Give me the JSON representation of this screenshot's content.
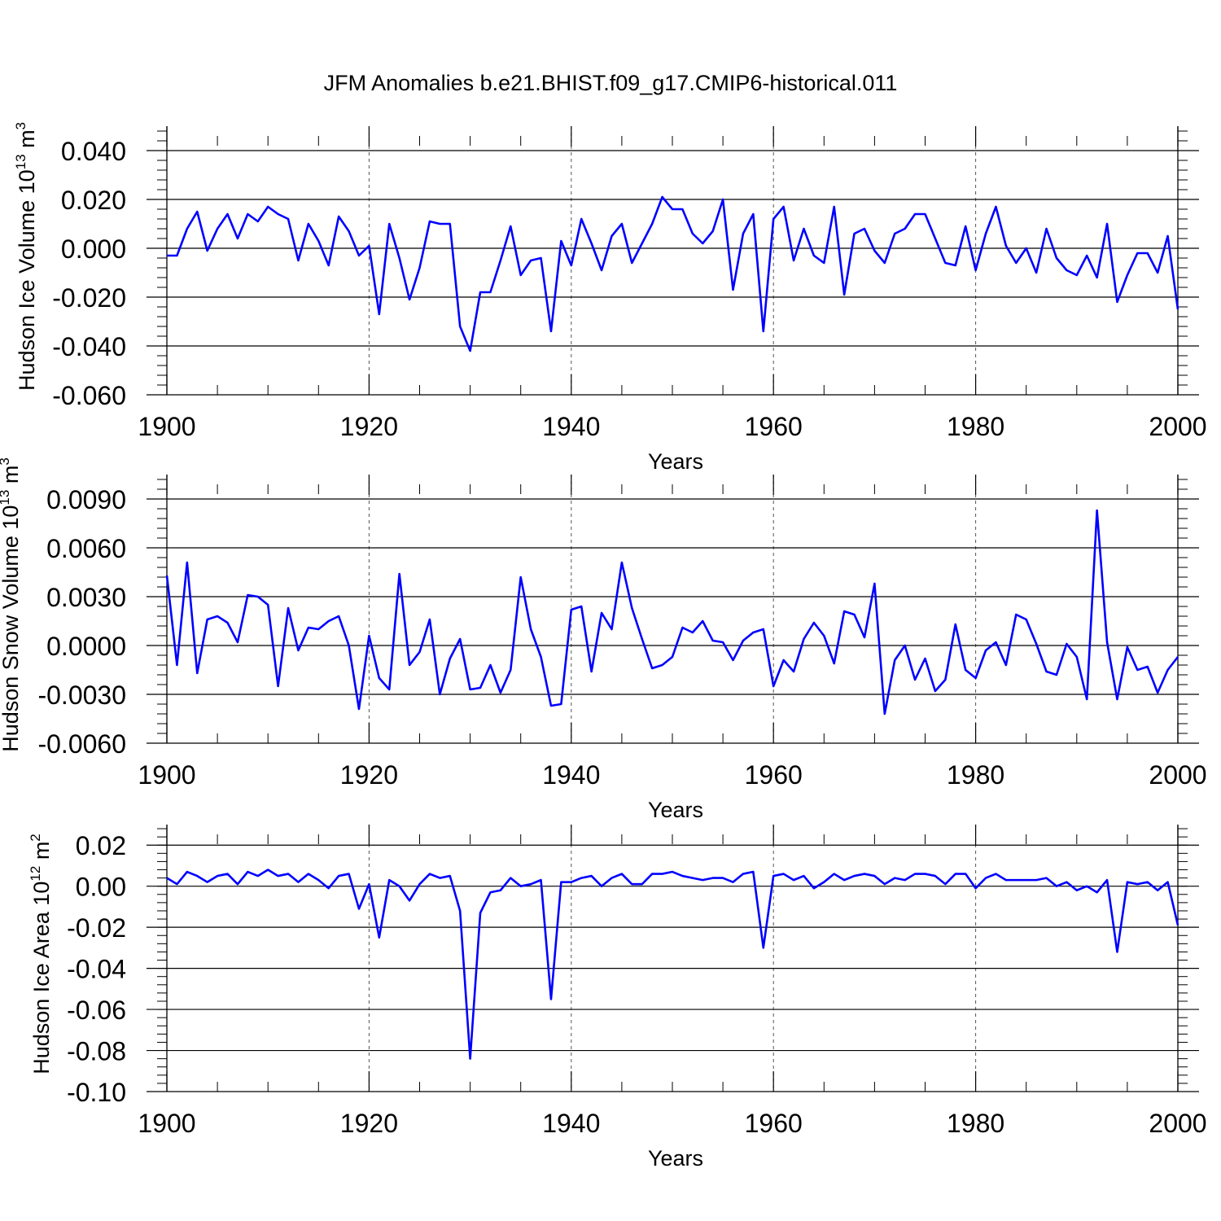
{
  "title": "JFM Anomalies b.e21.BHIST.f09_g17.CMIP6-historical.011",
  "line_color": "#0000ff",
  "chart_data": [
    {
      "type": "line",
      "name": "ice-volume",
      "ylabel": "Hudson Ice Volume 10",
      "ylabel_sup": "13",
      "ylabel_unit": " m",
      "ylabel_unit_sup": "3",
      "xlabel": "Years",
      "xlim": [
        1900,
        2000
      ],
      "ylim": [
        -0.06,
        0.05
      ],
      "yticks": [
        0.04,
        0.02,
        0.0,
        -0.02,
        -0.04,
        -0.06
      ],
      "ytick_labels": [
        "0.040",
        "0.020",
        "0.000",
        "-0.020",
        "-0.040",
        "-0.060"
      ],
      "xticks": [
        1900,
        1920,
        1940,
        1960,
        1980,
        2000
      ],
      "xtick_labels": [
        "1900",
        "1920",
        "1940",
        "1960",
        "1980",
        "2000"
      ],
      "x_start": 1900,
      "values": [
        -0.003,
        -0.003,
        0.008,
        0.015,
        -0.001,
        0.008,
        0.014,
        0.004,
        0.014,
        0.011,
        0.017,
        0.014,
        0.012,
        -0.005,
        0.01,
        0.003,
        -0.007,
        0.013,
        0.007,
        -0.003,
        0.001,
        -0.027,
        0.01,
        -0.004,
        -0.021,
        -0.008,
        0.011,
        0.01,
        0.01,
        -0.032,
        -0.042,
        -0.018,
        -0.018,
        -0.005,
        0.009,
        -0.011,
        -0.005,
        -0.004,
        -0.034,
        0.003,
        -0.007,
        0.012,
        0.002,
        -0.009,
        0.005,
        0.01,
        -0.006,
        0.002,
        0.01,
        0.021,
        0.016,
        0.016,
        0.006,
        0.002,
        0.007,
        0.02,
        -0.017,
        0.006,
        0.014,
        -0.034,
        0.012,
        0.017,
        -0.005,
        0.008,
        -0.003,
        -0.006,
        0.017,
        -0.019,
        0.006,
        0.008,
        -0.001,
        -0.006,
        0.006,
        0.008,
        0.014,
        0.014,
        0.004,
        -0.006,
        -0.007,
        0.009,
        -0.009,
        0.006,
        0.017,
        0.001,
        -0.006,
        0.0,
        -0.01,
        0.008,
        -0.004,
        -0.009,
        -0.011,
        -0.003,
        -0.012,
        0.01,
        -0.022,
        -0.011,
        -0.002,
        -0.002,
        -0.01,
        0.005,
        -0.025
      ]
    },
    {
      "type": "line",
      "name": "snow-volume",
      "ylabel": "Hudson Snow Volume 10",
      "ylabel_sup": "13",
      "ylabel_unit": " m",
      "ylabel_unit_sup": "3",
      "xlabel": "Years",
      "xlim": [
        1900,
        2000
      ],
      "ylim": [
        -0.006,
        0.0105
      ],
      "yticks": [
        0.009,
        0.006,
        0.003,
        0.0,
        -0.003,
        -0.006
      ],
      "ytick_labels": [
        "0.0090",
        "0.0060",
        "0.0030",
        "0.0000",
        "-0.0030",
        "-0.0060"
      ],
      "xticks": [
        1900,
        1920,
        1940,
        1960,
        1980,
        2000
      ],
      "xtick_labels": [
        "1900",
        "1920",
        "1940",
        "1960",
        "1980",
        "2000"
      ],
      "x_start": 1900,
      "values": [
        0.0043,
        -0.0012,
        0.0051,
        -0.0017,
        0.0016,
        0.0018,
        0.0014,
        0.0002,
        0.0031,
        0.003,
        0.0025,
        -0.0025,
        0.0023,
        -0.0003,
        0.0011,
        0.001,
        0.0015,
        0.0018,
        0.0,
        -0.0039,
        0.0006,
        -0.002,
        -0.0027,
        0.0044,
        -0.0012,
        -0.0004,
        0.0016,
        -0.003,
        -0.0008,
        0.0004,
        -0.0027,
        -0.0026,
        -0.0012,
        -0.0029,
        -0.0015,
        0.0042,
        0.001,
        -0.0007,
        -0.0037,
        -0.0036,
        0.0022,
        0.0024,
        -0.0016,
        0.002,
        0.001,
        0.0051,
        0.0023,
        0.0004,
        -0.0014,
        -0.0012,
        -0.0007,
        0.0011,
        0.0008,
        0.0015,
        0.0003,
        0.0002,
        -0.0009,
        0.0003,
        0.0008,
        0.001,
        -0.0025,
        -0.0009,
        -0.0016,
        0.0004,
        0.0014,
        0.0006,
        -0.0011,
        0.0021,
        0.0019,
        0.0005,
        0.0038,
        -0.0042,
        -0.0009,
        0.0,
        -0.0021,
        -0.0008,
        -0.0028,
        -0.0021,
        0.0013,
        -0.0015,
        -0.002,
        -0.0003,
        0.0002,
        -0.0012,
        0.0019,
        0.0016,
        0.0001,
        -0.0016,
        -0.0018,
        0.0001,
        -0.0007,
        -0.0033,
        0.0083,
        0.0002,
        -0.0033,
        -0.0001,
        -0.0015,
        -0.0013,
        -0.0029,
        -0.0015,
        -0.0007
      ]
    },
    {
      "type": "line",
      "name": "ice-area",
      "ylabel": "Hudson Ice Area 10",
      "ylabel_sup": "12",
      "ylabel_unit": " m",
      "ylabel_unit_sup": "2",
      "xlabel": "Years",
      "xlim": [
        1900,
        2000
      ],
      "ylim": [
        -0.1,
        0.03
      ],
      "yticks": [
        0.02,
        0.0,
        -0.02,
        -0.04,
        -0.06,
        -0.08,
        -0.1
      ],
      "ytick_labels": [
        "0.02",
        "0.00",
        "-0.02",
        "-0.04",
        "-0.06",
        "-0.08",
        "-0.10"
      ],
      "xticks": [
        1900,
        1920,
        1940,
        1960,
        1980,
        2000
      ],
      "xtick_labels": [
        "1900",
        "1920",
        "1940",
        "1960",
        "1980",
        "2000"
      ],
      "x_start": 1900,
      "values": [
        0.004,
        0.001,
        0.007,
        0.005,
        0.002,
        0.005,
        0.006,
        0.001,
        0.007,
        0.005,
        0.008,
        0.005,
        0.006,
        0.002,
        0.006,
        0.003,
        -0.001,
        0.005,
        0.006,
        -0.011,
        0.001,
        -0.025,
        0.003,
        0.0,
        -0.007,
        0.001,
        0.006,
        0.004,
        0.005,
        -0.012,
        -0.084,
        -0.013,
        -0.003,
        -0.002,
        0.004,
        0.0,
        0.001,
        0.003,
        -0.055,
        0.002,
        0.002,
        0.004,
        0.005,
        0.0,
        0.004,
        0.006,
        0.001,
        0.001,
        0.006,
        0.006,
        0.007,
        0.005,
        0.004,
        0.003,
        0.004,
        0.004,
        0.002,
        0.006,
        0.007,
        -0.03,
        0.005,
        0.006,
        0.003,
        0.005,
        -0.001,
        0.002,
        0.006,
        0.003,
        0.005,
        0.006,
        0.005,
        0.001,
        0.004,
        0.003,
        0.006,
        0.006,
        0.005,
        0.001,
        0.006,
        0.006,
        -0.001,
        0.004,
        0.006,
        0.003,
        0.003,
        0.003,
        0.003,
        0.004,
        0.0,
        0.002,
        -0.002,
        0.0,
        -0.003,
        0.003,
        -0.032,
        0.002,
        0.001,
        0.002,
        -0.002,
        0.002,
        -0.019
      ]
    }
  ]
}
